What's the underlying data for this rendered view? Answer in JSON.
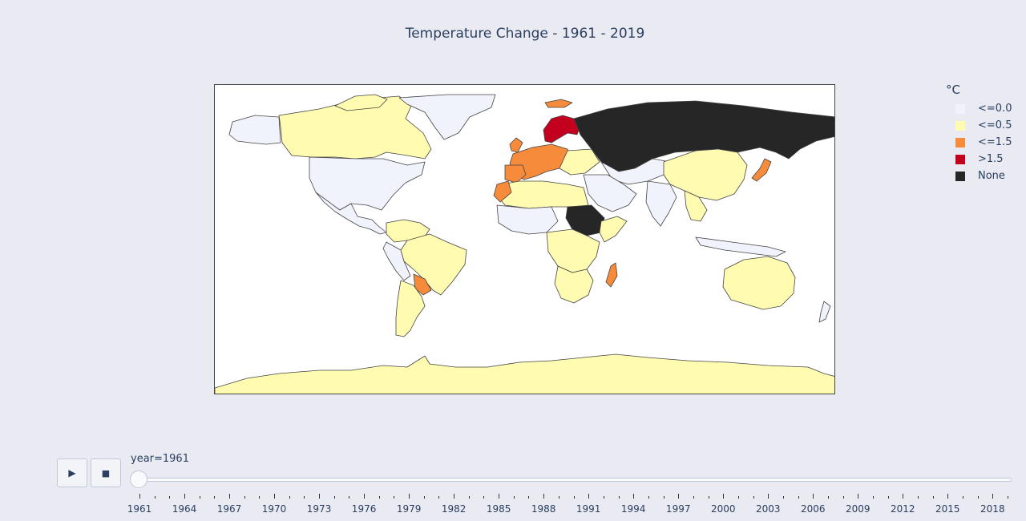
{
  "title": "Temperature Change - 1961 - 2019",
  "legend": {
    "title": "°C",
    "items": [
      {
        "label": "<=0.0",
        "color": "#f0f2fc"
      },
      {
        "label": "<=0.5",
        "color": "#fffbb0"
      },
      {
        "label": "<=1.5",
        "color": "#f68b3b"
      },
      {
        "label": ">1.5",
        "color": "#c4001f"
      },
      {
        "label": "None",
        "color": "#262626"
      }
    ]
  },
  "colors": {
    "background": "#e9eaf2",
    "ocean": "#ffffff",
    "border": "#444444"
  },
  "slider": {
    "label": "year=1961",
    "current_year": 1961,
    "min_year": 1961,
    "max_year": 2019,
    "tick_labels": [
      "1961",
      "1964",
      "1967",
      "1970",
      "1973",
      "1976",
      "1979",
      "1982",
      "1985",
      "1988",
      "1991",
      "1994",
      "1997",
      "2000",
      "2003",
      "2006",
      "2009",
      "2012",
      "2015",
      "2018"
    ]
  },
  "controls": {
    "play_glyph": "▶",
    "stop_glyph": "■"
  }
}
